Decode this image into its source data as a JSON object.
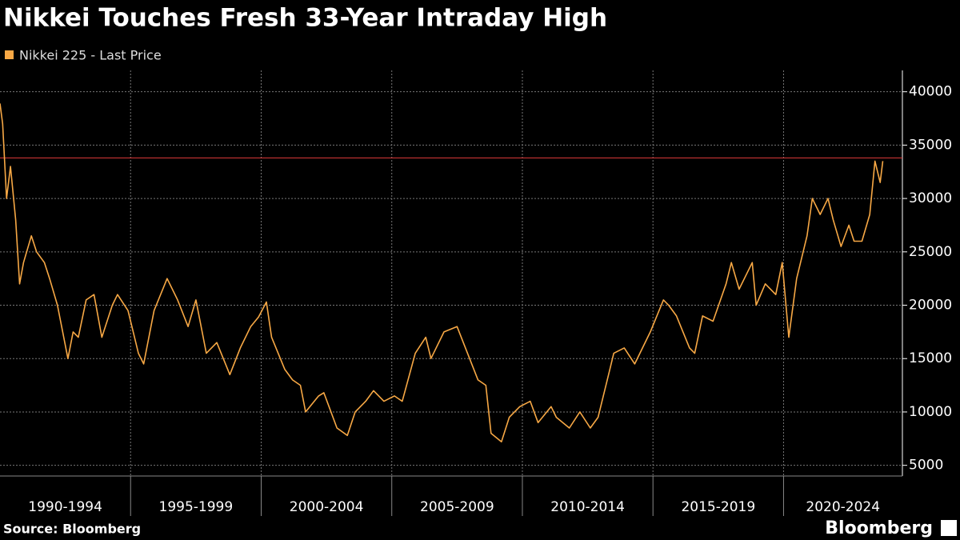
{
  "chart_data": {
    "type": "line",
    "title": "Nikkei Touches Fresh 33-Year Intraday High",
    "source": "Source: Bloomberg",
    "brand": "Bloomberg",
    "x": [
      1990.0,
      1990.1,
      1990.25,
      1990.4,
      1990.6,
      1990.75,
      1990.9,
      1991.2,
      1991.4,
      1991.7,
      1991.9,
      1992.2,
      1992.6,
      1992.8,
      1993.0,
      1993.3,
      1993.6,
      1993.9,
      1994.3,
      1994.5,
      1994.9,
      1995.3,
      1995.5,
      1995.9,
      1996.4,
      1996.8,
      1997.2,
      1997.5,
      1997.9,
      1998.3,
      1998.8,
      1999.2,
      1999.6,
      1999.9,
      2000.2,
      2000.4,
      2000.9,
      2001.2,
      2001.5,
      2001.7,
      2002.2,
      2002.4,
      2002.9,
      2003.3,
      2003.6,
      2004.0,
      2004.3,
      2004.7,
      2005.1,
      2005.4,
      2005.9,
      2006.3,
      2006.5,
      2007.0,
      2007.5,
      2007.9,
      2008.3,
      2008.6,
      2008.8,
      2009.2,
      2009.5,
      2009.9,
      2010.3,
      2010.6,
      2011.1,
      2011.3,
      2011.8,
      2012.2,
      2012.6,
      2012.9,
      2013.3,
      2013.5,
      2013.9,
      2014.3,
      2014.9,
      2015.4,
      2015.6,
      2015.9,
      2016.4,
      2016.6,
      2016.9,
      2017.3,
      2017.8,
      2018.0,
      2018.3,
      2018.8,
      2018.95,
      2019.3,
      2019.7,
      2019.95,
      2020.2,
      2020.5,
      2020.9,
      2021.1,
      2021.4,
      2021.7,
      2021.9,
      2022.2,
      2022.5,
      2022.7,
      2023.0,
      2023.3,
      2023.5,
      2023.7,
      2023.8
    ],
    "series": [
      {
        "name": "Nikkei 225 - Last Price",
        "color": "#f7a845",
        "values": [
          38900,
          37000,
          30000,
          33000,
          28000,
          22000,
          24000,
          26500,
          25000,
          24000,
          22500,
          20000,
          15000,
          17500,
          17000,
          20500,
          21000,
          17000,
          20000,
          21000,
          19500,
          15500,
          14500,
          19500,
          22500,
          20500,
          18000,
          20500,
          15500,
          16500,
          13500,
          16000,
          18000,
          18900,
          20300,
          17000,
          14000,
          13000,
          12500,
          10000,
          11500,
          11800,
          8500,
          7800,
          10000,
          11000,
          12000,
          11000,
          11500,
          11000,
          15500,
          17000,
          15000,
          17500,
          18000,
          15500,
          13000,
          12500,
          8000,
          7200,
          9500,
          10500,
          11000,
          9000,
          10500,
          9500,
          8500,
          10000,
          8500,
          9500,
          13500,
          15500,
          16000,
          14500,
          17500,
          20500,
          20000,
          19000,
          16000,
          15500,
          19000,
          18500,
          22000,
          24000,
          21500,
          24000,
          20000,
          22000,
          21000,
          24000,
          17000,
          22500,
          26500,
          30000,
          28500,
          30000,
          28000,
          25500,
          27500,
          26000,
          26000,
          28500,
          33500,
          31500,
          33500
        ]
      }
    ],
    "reference_line": {
      "value": 33800,
      "color": "#e03a3a"
    },
    "xlim": [
      1990,
      2024.55
    ],
    "xticks": [
      1990,
      1995,
      2000,
      2005,
      2010,
      2015,
      2020,
      2025
    ],
    "x_band_labels": [
      "1990-1994",
      "1995-1999",
      "2000-2004",
      "2005-2009",
      "2010-2014",
      "2015-2019",
      "2020-2024"
    ],
    "ylim": [
      4000,
      42000
    ],
    "yticks": [
      5000,
      10000,
      15000,
      20000,
      25000,
      30000,
      35000,
      40000
    ],
    "grid": true
  }
}
